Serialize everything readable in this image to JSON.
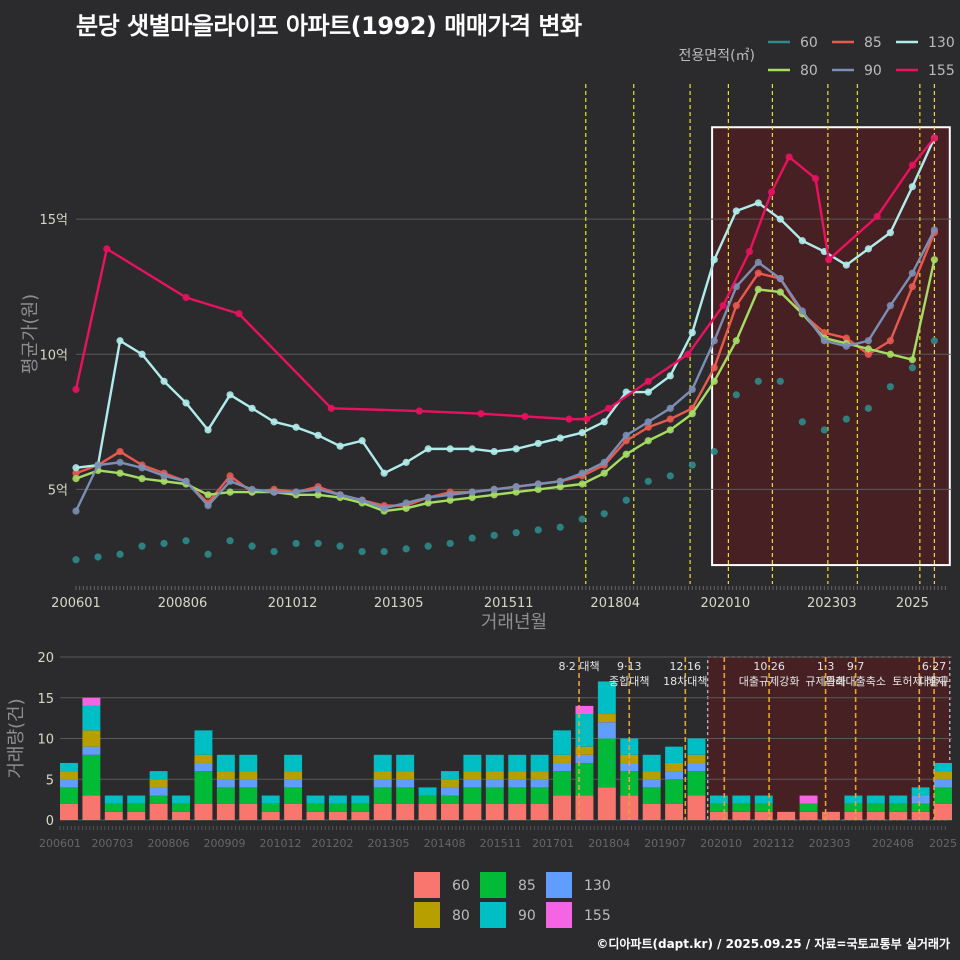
{
  "title": "분당 샛별마을라이프 아파트(1992) 매매가격 변화",
  "credit": "©디아파트(dapt.kr) / 2025.09.25 / 자료=국토교통부 실거래가",
  "colors": {
    "background": "#2b2b2d",
    "highlight_fill": "#4a1f22",
    "highlight_border": "#ffffff",
    "policy_line": "#e5e33a",
    "policy_line_bottom": "#e6a23c",
    "grid": "#5a5a5a"
  },
  "chart_data": [
    {
      "type": "line",
      "title": "분당 샛별마을라이프 아파트(1992) 매매가격 변화",
      "xlabel": "거래년월",
      "ylabel": "평균가(원)",
      "x_range": [
        2006.0,
        2025.9
      ],
      "ylim": [
        1.5,
        20.0
      ],
      "y_ticks": [
        5,
        10,
        15
      ],
      "y_tick_labels": [
        "5억",
        "10억",
        "15억"
      ],
      "x_tick_labels": [
        "200601",
        "200806",
        "201012",
        "201305",
        "201511",
        "201804",
        "202010",
        "202303",
        "2025"
      ],
      "x_tick_values": [
        2006.0,
        2008.42,
        2010.92,
        2013.33,
        2015.83,
        2018.25,
        2020.75,
        2023.17,
        2025.0
      ],
      "legend_title": "전용면적(㎡)",
      "legend": [
        {
          "name": "60",
          "color": "#2e8b8b"
        },
        {
          "name": "85",
          "color": "#e8594f"
        },
        {
          "name": "130",
          "color": "#b0ecec"
        },
        {
          "name": "80",
          "color": "#a5dd64"
        },
        {
          "name": "90",
          "color": "#7b8fb5"
        },
        {
          "name": "155",
          "color": "#e8125f"
        }
      ],
      "policy_lines_x": [
        2017.58,
        2018.67,
        2019.95,
        2020.82,
        2021.82,
        2023.08,
        2023.75,
        2025.17,
        2025.5
      ],
      "highlight_x": [
        2020.45,
        2025.85
      ],
      "series": [
        {
          "name": "60",
          "x": [
            2006.0,
            2006.5,
            2007.0,
            2007.5,
            2008.0,
            2008.5,
            2009.0,
            2009.5,
            2010.0,
            2010.5,
            2011.0,
            2011.5,
            2012.0,
            2012.5,
            2013.0,
            2013.5,
            2014.0,
            2014.5,
            2015.0,
            2015.5,
            2016.0,
            2016.5,
            2017.0,
            2017.5,
            2018.0,
            2018.5,
            2019.0,
            2019.5,
            2020.0,
            2020.5,
            2021.0,
            2021.5,
            2022.0,
            2022.5,
            2023.0,
            2023.5,
            2024.0,
            2024.5,
            2025.0,
            2025.5
          ],
          "values": [
            2.4,
            2.5,
            2.6,
            2.9,
            3.0,
            3.1,
            2.6,
            3.1,
            2.9,
            2.7,
            3.0,
            3.0,
            2.9,
            2.7,
            2.7,
            2.8,
            2.9,
            3.0,
            3.2,
            3.3,
            3.4,
            3.5,
            3.6,
            3.9,
            4.1,
            4.6,
            5.3,
            5.5,
            5.9,
            6.4,
            8.5,
            9.0,
            9.0,
            7.5,
            7.2,
            7.6,
            8.0,
            8.8,
            9.5,
            10.5
          ]
        },
        {
          "name": "85",
          "x": [
            2006.0,
            2006.5,
            2007.0,
            2007.5,
            2008.0,
            2008.5,
            2009.0,
            2009.5,
            2010.0,
            2010.5,
            2011.0,
            2011.5,
            2012.0,
            2012.5,
            2013.0,
            2013.5,
            2014.0,
            2014.5,
            2015.0,
            2015.5,
            2016.0,
            2016.5,
            2017.0,
            2017.5,
            2018.0,
            2018.5,
            2019.0,
            2019.5,
            2020.0,
            2020.5,
            2021.0,
            2021.5,
            2022.0,
            2022.5,
            2023.0,
            2023.5,
            2024.0,
            2024.5,
            2025.0,
            2025.5
          ],
          "values": [
            5.6,
            5.9,
            6.4,
            5.9,
            5.6,
            5.3,
            4.5,
            5.5,
            4.9,
            5.0,
            4.9,
            5.1,
            4.8,
            4.6,
            4.4,
            4.4,
            4.7,
            4.9,
            4.9,
            5.0,
            5.1,
            5.2,
            5.3,
            5.5,
            5.9,
            6.8,
            7.3,
            7.6,
            8.0,
            9.5,
            11.8,
            13.0,
            12.8,
            11.5,
            10.8,
            10.6,
            10.0,
            10.5,
            12.5,
            14.5
          ]
        },
        {
          "name": "130",
          "x": [
            2006.0,
            2006.5,
            2007.0,
            2007.5,
            2008.0,
            2008.5,
            2009.0,
            2009.5,
            2010.0,
            2010.5,
            2011.0,
            2011.5,
            2012.0,
            2012.5,
            2013.0,
            2013.5,
            2014.0,
            2014.5,
            2015.0,
            2015.5,
            2016.0,
            2016.5,
            2017.0,
            2017.5,
            2018.0,
            2018.5,
            2019.0,
            2019.5,
            2020.0,
            2020.5,
            2021.0,
            2021.5,
            2022.0,
            2022.5,
            2023.0,
            2023.5,
            2024.0,
            2024.5,
            2025.0,
            2025.5
          ],
          "values": [
            5.8,
            5.9,
            10.5,
            10.0,
            9.0,
            8.2,
            7.2,
            8.5,
            8.0,
            7.5,
            7.3,
            7.0,
            6.6,
            6.8,
            5.6,
            6.0,
            6.5,
            6.5,
            6.5,
            6.4,
            6.5,
            6.7,
            6.9,
            7.1,
            7.5,
            8.6,
            8.6,
            9.2,
            10.8,
            13.5,
            15.3,
            15.6,
            15.0,
            14.2,
            13.8,
            13.3,
            13.9,
            14.5,
            16.2,
            18.0
          ]
        },
        {
          "name": "80",
          "x": [
            2006.0,
            2006.5,
            2007.0,
            2007.5,
            2008.0,
            2008.5,
            2009.0,
            2009.5,
            2010.0,
            2010.5,
            2011.0,
            2011.5,
            2012.0,
            2012.5,
            2013.0,
            2013.5,
            2014.0,
            2014.5,
            2015.0,
            2015.5,
            2016.0,
            2016.5,
            2017.0,
            2017.5,
            2018.0,
            2018.5,
            2019.0,
            2019.5,
            2020.0,
            2020.5,
            2021.0,
            2021.5,
            2022.0,
            2022.5,
            2023.0,
            2023.5,
            2024.0,
            2024.5,
            2025.0,
            2025.5
          ],
          "values": [
            5.4,
            5.7,
            5.6,
            5.4,
            5.3,
            5.2,
            4.8,
            4.9,
            4.9,
            4.9,
            4.8,
            4.8,
            4.7,
            4.5,
            4.2,
            4.3,
            4.5,
            4.6,
            4.7,
            4.8,
            4.9,
            5.0,
            5.1,
            5.2,
            5.6,
            6.3,
            6.8,
            7.2,
            7.8,
            9.0,
            10.5,
            12.4,
            12.3,
            11.5,
            10.6,
            10.4,
            10.2,
            10.0,
            9.8,
            13.5
          ]
        },
        {
          "name": "90",
          "x": [
            2006.0,
            2006.5,
            2007.0,
            2007.5,
            2008.0,
            2008.5,
            2009.0,
            2009.5,
            2010.0,
            2010.5,
            2011.0,
            2011.5,
            2012.0,
            2012.5,
            2013.0,
            2013.5,
            2014.0,
            2014.5,
            2015.0,
            2015.5,
            2016.0,
            2016.5,
            2017.0,
            2017.5,
            2018.0,
            2018.5,
            2019.0,
            2019.5,
            2020.0,
            2020.5,
            2021.0,
            2021.5,
            2022.0,
            2022.5,
            2023.0,
            2023.5,
            2024.0,
            2024.5,
            2025.0,
            2025.5
          ],
          "values": [
            4.2,
            5.9,
            6.0,
            5.8,
            5.5,
            5.3,
            4.4,
            5.3,
            5.0,
            4.9,
            4.9,
            5.0,
            4.8,
            4.6,
            4.3,
            4.5,
            4.7,
            4.8,
            4.9,
            5.0,
            5.1,
            5.2,
            5.3,
            5.6,
            6.0,
            7.0,
            7.5,
            8.0,
            8.7,
            10.5,
            12.5,
            13.4,
            12.8,
            11.6,
            10.5,
            10.3,
            10.5,
            11.8,
            13.0,
            14.6
          ]
        },
        {
          "name": "155",
          "x": [
            2006.0,
            2006.7,
            2008.5,
            2009.7,
            2011.8,
            2013.8,
            2015.2,
            2016.2,
            2017.2,
            2017.6,
            2018.1,
            2019.0,
            2019.9,
            2020.7,
            2021.3,
            2021.8,
            2022.2,
            2022.8,
            2023.1,
            2024.2,
            2025.0,
            2025.5
          ],
          "values": [
            8.7,
            13.9,
            12.1,
            11.5,
            8.0,
            7.9,
            7.8,
            7.7,
            7.6,
            7.6,
            8.0,
            9.0,
            10.0,
            11.8,
            13.8,
            16.0,
            17.3,
            16.5,
            13.5,
            15.1,
            17.0,
            18.0
          ]
        }
      ]
    },
    {
      "type": "bar",
      "title": "거래량",
      "xlabel": "",
      "ylabel": "거래량(건)",
      "ylim": [
        0,
        20
      ],
      "y_ticks": [
        0,
        5,
        10,
        15,
        20
      ],
      "x_tick_labels": [
        "200601",
        "200703",
        "200806",
        "200909",
        "201012",
        "201202",
        "201305",
        "201408",
        "201511",
        "201701",
        "201804",
        "201907",
        "202010",
        "202112",
        "202303",
        "202408",
        "2025"
      ],
      "x_tick_values": [
        2006.0,
        2007.17,
        2008.42,
        2009.67,
        2010.92,
        2012.08,
        2013.33,
        2014.58,
        2015.83,
        2017.0,
        2018.25,
        2019.5,
        2020.75,
        2021.92,
        2023.17,
        2024.58,
        2025.7
      ],
      "legend": [
        {
          "name": "60",
          "color": "#f8766d"
        },
        {
          "name": "85",
          "color": "#00ba38"
        },
        {
          "name": "130",
          "color": "#619cff"
        },
        {
          "name": "80",
          "color": "#b79f00"
        },
        {
          "name": "90",
          "color": "#00bfc4"
        },
        {
          "name": "155",
          "color": "#f564e3"
        }
      ],
      "annotations": [
        {
          "x": 2017.58,
          "lines": [
            "8·2 대책"
          ]
        },
        {
          "x": 2018.7,
          "lines": [
            "9·13",
            "종합대책"
          ]
        },
        {
          "x": 2019.95,
          "lines": [
            "12·16",
            "18차대책"
          ]
        },
        {
          "x": 2020.82,
          "lines": [
            ""
          ]
        },
        {
          "x": 2021.82,
          "lines": [
            "10·26",
            "대출규제강화"
          ]
        },
        {
          "x": 2023.08,
          "lines": [
            "1·3",
            "규제완화"
          ]
        },
        {
          "x": 2023.75,
          "lines": [
            "9·7",
            "특례대출축소"
          ]
        },
        {
          "x": 2025.17,
          "lines": [
            "",
            "토허제 해제"
          ]
        },
        {
          "x": 2025.5,
          "lines": [
            "6·27",
            "대출규"
          ]
        }
      ],
      "highlight_x": [
        2020.45,
        2025.85
      ],
      "categories": [
        "2006.0",
        "2006.5",
        "2007.0",
        "2007.5",
        "2008.0",
        "2008.5",
        "2009.0",
        "2009.5",
        "2010.0",
        "2010.5",
        "2011.0",
        "2011.5",
        "2012.0",
        "2012.5",
        "2013.0",
        "2013.5",
        "2014.0",
        "2014.5",
        "2015.0",
        "2015.5",
        "2016.0",
        "2016.5",
        "2017.0",
        "2017.5",
        "2018.0",
        "2018.5",
        "2019.0",
        "2019.5",
        "2020.0",
        "2020.5",
        "2021.0",
        "2021.5",
        "2022.0",
        "2022.5",
        "2023.0",
        "2023.5",
        "2024.0",
        "2024.5",
        "2025.0",
        "2025.5"
      ],
      "series": [
        {
          "name": "60",
          "values": [
            2,
            3,
            1,
            1,
            2,
            1,
            2,
            2,
            2,
            1,
            2,
            1,
            1,
            1,
            2,
            2,
            2,
            2,
            2,
            2,
            2,
            2,
            3,
            3,
            4,
            3,
            2,
            2,
            3,
            1,
            1,
            1,
            1,
            1,
            1,
            1,
            1,
            1,
            1,
            2
          ]
        },
        {
          "name": "85",
          "values": [
            2,
            5,
            1,
            1,
            1,
            1,
            4,
            2,
            2,
            1,
            2,
            1,
            1,
            1,
            2,
            2,
            1,
            1,
            2,
            2,
            2,
            2,
            3,
            4,
            6,
            3,
            2,
            3,
            3,
            1,
            1,
            1,
            0,
            1,
            0,
            1,
            1,
            1,
            1,
            2
          ]
        },
        {
          "name": "130",
          "values": [
            1,
            1,
            0,
            0,
            1,
            0,
            1,
            1,
            1,
            0,
            1,
            0,
            0,
            0,
            1,
            1,
            0,
            1,
            1,
            1,
            1,
            1,
            1,
            1,
            2,
            1,
            1,
            1,
            1,
            0,
            0,
            0,
            0,
            0,
            0,
            0,
            0,
            0,
            1,
            1
          ]
        },
        {
          "name": "80",
          "values": [
            1,
            2,
            0,
            0,
            1,
            0,
            1,
            1,
            1,
            0,
            1,
            0,
            0,
            0,
            1,
            1,
            0,
            1,
            1,
            1,
            1,
            1,
            1,
            1,
            1,
            1,
            1,
            1,
            1,
            0,
            0,
            0,
            0,
            0,
            0,
            0,
            0,
            0,
            0,
            1
          ]
        },
        {
          "name": "90",
          "values": [
            1,
            3,
            1,
            1,
            1,
            1,
            3,
            2,
            2,
            1,
            2,
            1,
            1,
            1,
            2,
            2,
            1,
            1,
            2,
            2,
            2,
            2,
            3,
            4,
            4,
            2,
            2,
            2,
            2,
            1,
            1,
            1,
            0,
            0,
            0,
            1,
            1,
            1,
            1,
            1
          ]
        },
        {
          "name": "155",
          "values": [
            0,
            1,
            0,
            0,
            0,
            0,
            0,
            0,
            0,
            0,
            0,
            0,
            0,
            0,
            0,
            0,
            0,
            0,
            0,
            0,
            0,
            0,
            0,
            1,
            0,
            0,
            0,
            0,
            0,
            0,
            0,
            0,
            0,
            1,
            0,
            0,
            0,
            0,
            0,
            0
          ]
        }
      ]
    }
  ]
}
